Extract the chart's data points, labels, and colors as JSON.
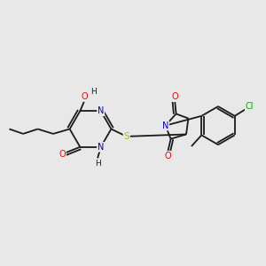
{
  "bg_color": "#e8e8e8",
  "bond_color": "#1a1a1a",
  "atom_colors": {
    "N": "#0000cc",
    "O": "#ff0000",
    "S": "#bbbb00",
    "Cl": "#00aa00",
    "C": "#1a1a1a",
    "H": "#1a1a1a"
  },
  "figsize": [
    3.0,
    3.0
  ],
  "dpi": 100,
  "lw": 1.3,
  "fs": 6.5
}
